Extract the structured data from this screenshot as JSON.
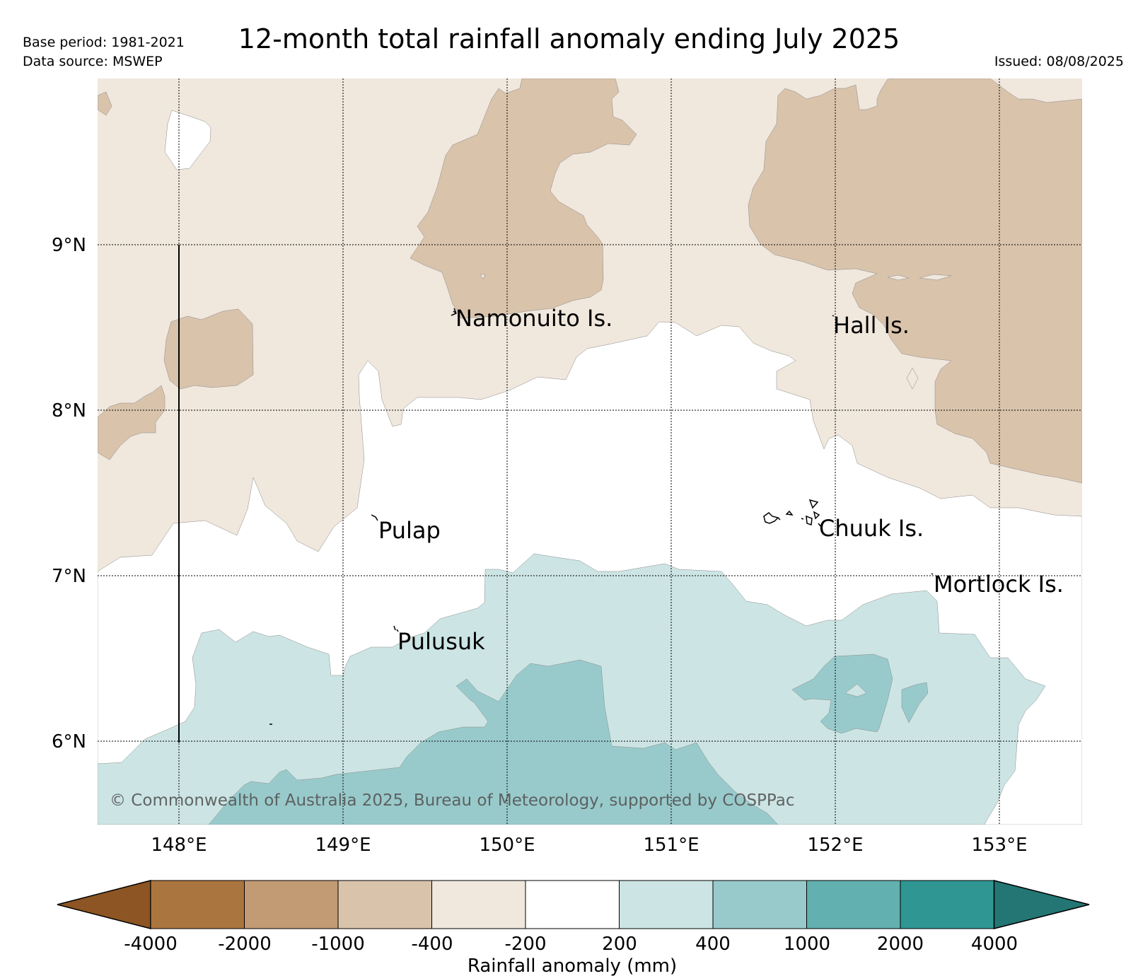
{
  "header": {
    "base_period": "Base period: 1981-2021",
    "data_source": "Data source: MSWEP",
    "title": "12-month total rainfall anomaly ending July 2025",
    "issued": "Issued: 08/08/2025"
  },
  "map": {
    "lat_labels": [
      "9°N",
      "8°N",
      "7°N",
      "6°N"
    ],
    "lon_labels": [
      "148°E",
      "149°E",
      "150°E",
      "151°E",
      "152°E",
      "153°E"
    ],
    "places": [
      "Namonuito Is.",
      "Hall Is.",
      "Pulap",
      "Chuuk Is.",
      "Mortlock Is.",
      "Pulusuk"
    ],
    "copyright": "© Commonwealth of Australia 2025, Bureau of Meteorology, supported by COSPPac"
  },
  "legend": {
    "title": "Rainfall anomaly (mm)",
    "ticks": [
      "-4000",
      "-2000",
      "-1000",
      "-400",
      "-200",
      "200",
      "400",
      "1000",
      "2000",
      "4000"
    ],
    "colors": [
      "#8c5523",
      "#ab753f",
      "#c29b74",
      "#d9c3ab",
      "#f0e7dd",
      "#ffffff",
      "#cce5e4",
      "#99cacb",
      "#63b0b0",
      "#2f9693",
      "#237673"
    ]
  }
}
